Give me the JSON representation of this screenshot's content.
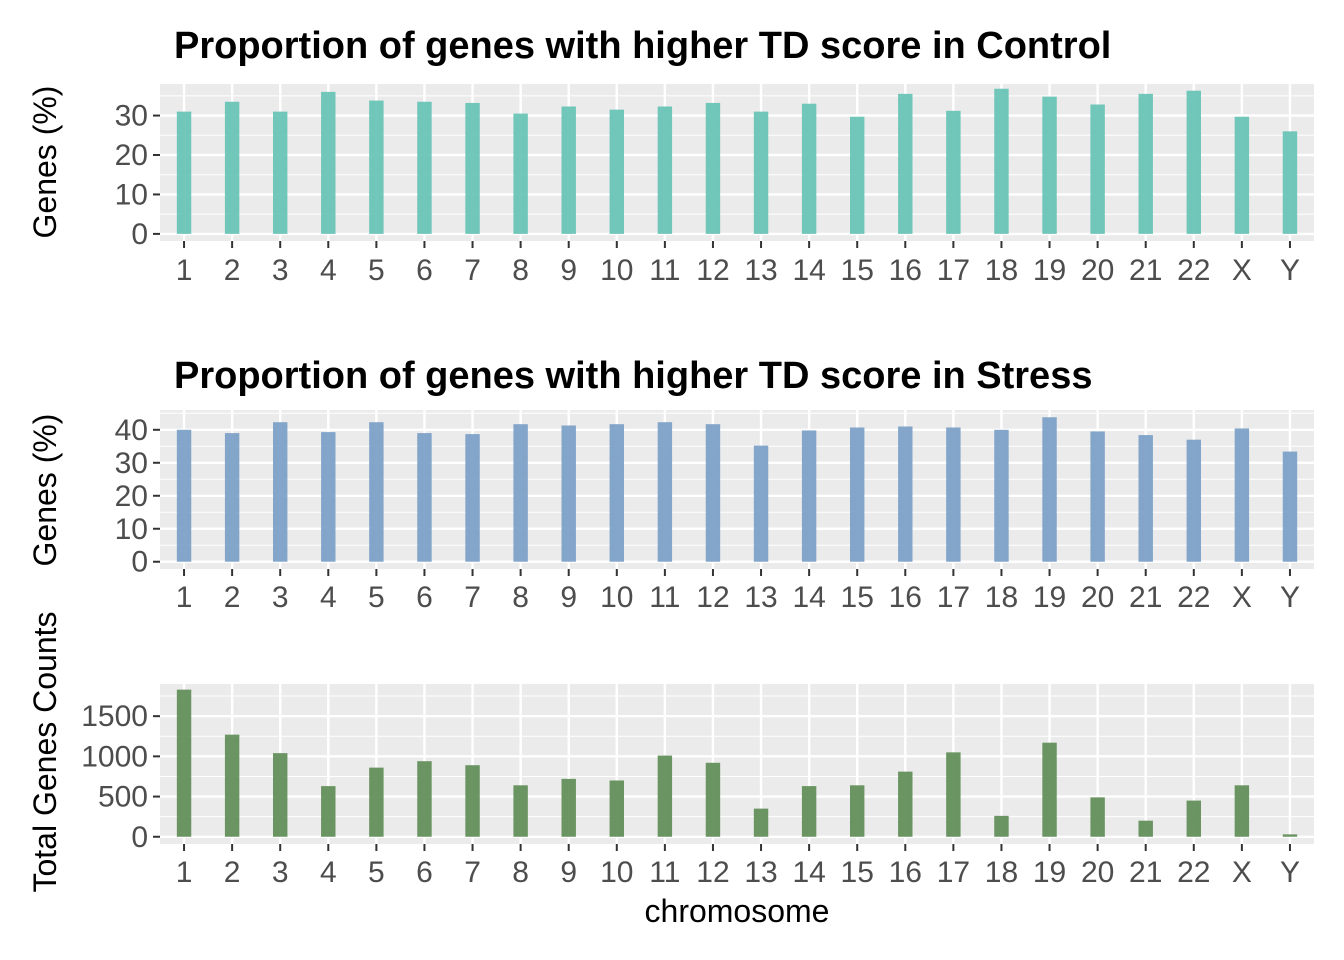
{
  "chart_data": [
    {
      "type": "bar",
      "title": "Proportion of genes with higher TD score in Control",
      "xlabel": "",
      "ylabel": "Genes (%)",
      "color": "#66C2B5",
      "ylim": [
        -1.8,
        38
      ],
      "yticks": [
        0,
        10,
        20,
        30
      ],
      "grid": true,
      "categories": [
        "1",
        "2",
        "3",
        "4",
        "5",
        "6",
        "7",
        "8",
        "9",
        "10",
        "11",
        "12",
        "13",
        "14",
        "15",
        "16",
        "17",
        "18",
        "19",
        "20",
        "21",
        "22",
        "X",
        "Y"
      ],
      "values": [
        31,
        33.5,
        31,
        36,
        33.8,
        33.5,
        33.2,
        30.5,
        32.3,
        31.5,
        32.3,
        33.2,
        31,
        33,
        29.7,
        35.5,
        31.2,
        36.8,
        34.8,
        32.8,
        35.5,
        36.3,
        29.7,
        26
      ]
    },
    {
      "type": "bar",
      "title": "Proportion of genes with higher TD score in Stress",
      "xlabel": "",
      "ylabel": "Genes (%)",
      "color": "#7A9EC7",
      "ylim": [
        -2.2,
        46
      ],
      "yticks": [
        0,
        10,
        20,
        30,
        40
      ],
      "grid": true,
      "categories": [
        "1",
        "2",
        "3",
        "4",
        "5",
        "6",
        "7",
        "8",
        "9",
        "10",
        "11",
        "12",
        "13",
        "14",
        "15",
        "16",
        "17",
        "18",
        "19",
        "20",
        "21",
        "22",
        "X",
        "Y"
      ],
      "values": [
        40,
        39,
        42.3,
        39.3,
        42.3,
        39,
        38.7,
        41.7,
        41.3,
        41.7,
        42.3,
        41.7,
        35.2,
        39.8,
        40.7,
        41,
        40.7,
        40,
        43.8,
        39.5,
        38.4,
        37,
        40.4,
        33.4
      ]
    },
    {
      "type": "bar",
      "title": "",
      "xlabel": "chromosome",
      "ylabel": "Total Genes Counts",
      "color": "#5E8C55",
      "ylim": [
        -90,
        1900
      ],
      "yticks": [
        0,
        500,
        1000,
        1500
      ],
      "grid": true,
      "categories": [
        "1",
        "2",
        "3",
        "4",
        "5",
        "6",
        "7",
        "8",
        "9",
        "10",
        "11",
        "12",
        "13",
        "14",
        "15",
        "16",
        "17",
        "18",
        "19",
        "20",
        "21",
        "22",
        "X",
        "Y"
      ],
      "values": [
        1830,
        1270,
        1040,
        630,
        860,
        940,
        890,
        640,
        720,
        700,
        1010,
        920,
        350,
        630,
        640,
        810,
        1050,
        260,
        1170,
        490,
        200,
        450,
        640,
        30
      ]
    }
  ]
}
